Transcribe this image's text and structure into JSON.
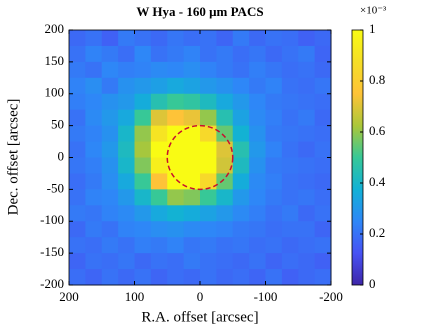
{
  "chart_data": {
    "type": "heatmap",
    "title": "W Hya - 160 μm PACS",
    "xlabel": "R.A. offset [arcsec]",
    "ylabel": "Dec. offset [arcsec]",
    "xlim": [
      200,
      -200
    ],
    "ylim": [
      -200,
      200
    ],
    "xticks": [
      200,
      100,
      0,
      -100,
      -200
    ],
    "yticks": [
      -200,
      -150,
      -100,
      -50,
      0,
      50,
      100,
      150,
      200
    ],
    "colormap": "parula",
    "clim": [
      0,
      1
    ],
    "cticks": [
      0,
      0.2,
      0.4,
      0.6,
      0.8,
      1
    ],
    "cexponent": "×10⁻³",
    "x": [
      187.5,
      162.5,
      137.5,
      112.5,
      87.5,
      62.5,
      37.5,
      12.5,
      -12.5,
      -37.5,
      -62.5,
      -87.5,
      -112.5,
      -137.5,
      -162.5,
      -187.5
    ],
    "y": [
      187.5,
      162.5,
      137.5,
      112.5,
      87.5,
      62.5,
      37.5,
      12.5,
      -12.5,
      -37.5,
      -62.5,
      -87.5,
      -112.5,
      -137.5,
      -162.5,
      -187.5
    ],
    "z": [
      [
        0.18,
        0.2,
        0.16,
        0.22,
        0.2,
        0.18,
        0.21,
        0.19,
        0.2,
        0.17,
        0.22,
        0.18,
        0.2,
        0.19,
        0.16,
        0.18
      ],
      [
        0.2,
        0.24,
        0.22,
        0.19,
        0.25,
        0.2,
        0.22,
        0.24,
        0.2,
        0.22,
        0.19,
        0.21,
        0.18,
        0.2,
        0.22,
        0.17
      ],
      [
        0.22,
        0.2,
        0.25,
        0.23,
        0.24,
        0.26,
        0.25,
        0.27,
        0.24,
        0.22,
        0.2,
        0.23,
        0.21,
        0.19,
        0.2,
        0.18
      ],
      [
        0.24,
        0.27,
        0.22,
        0.28,
        0.3,
        0.32,
        0.35,
        0.33,
        0.3,
        0.28,
        0.25,
        0.22,
        0.24,
        0.2,
        0.19,
        0.21
      ],
      [
        0.23,
        0.25,
        0.28,
        0.3,
        0.36,
        0.45,
        0.5,
        0.48,
        0.42,
        0.35,
        0.3,
        0.25,
        0.22,
        0.21,
        0.2,
        0.19
      ],
      [
        0.2,
        0.26,
        0.3,
        0.35,
        0.5,
        0.7,
        0.75,
        0.72,
        0.6,
        0.45,
        0.33,
        0.26,
        0.23,
        0.2,
        0.22,
        0.18
      ],
      [
        0.22,
        0.24,
        0.28,
        0.4,
        0.6,
        0.9,
        1,
        1,
        0.85,
        0.55,
        0.38,
        0.28,
        0.22,
        0.21,
        0.2,
        0.19
      ],
      [
        0.2,
        0.25,
        0.3,
        0.42,
        0.62,
        1,
        1,
        1,
        1,
        0.7,
        0.45,
        0.3,
        0.24,
        0.2,
        0.18,
        0.2
      ],
      [
        0.21,
        0.23,
        0.28,
        0.4,
        0.58,
        0.95,
        1,
        1,
        1,
        0.68,
        0.42,
        0.28,
        0.22,
        0.21,
        0.2,
        0.19
      ],
      [
        0.19,
        0.22,
        0.27,
        0.35,
        0.5,
        0.75,
        1,
        1,
        0.85,
        0.55,
        0.36,
        0.26,
        0.23,
        0.2,
        0.19,
        0.18
      ],
      [
        0.2,
        0.24,
        0.25,
        0.3,
        0.4,
        0.5,
        0.6,
        0.58,
        0.5,
        0.4,
        0.3,
        0.25,
        0.22,
        0.2,
        0.21,
        0.19
      ],
      [
        0.22,
        0.21,
        0.24,
        0.26,
        0.3,
        0.35,
        0.38,
        0.36,
        0.33,
        0.3,
        0.26,
        0.23,
        0.2,
        0.22,
        0.18,
        0.2
      ],
      [
        0.18,
        0.22,
        0.2,
        0.24,
        0.25,
        0.27,
        0.28,
        0.26,
        0.25,
        0.24,
        0.22,
        0.21,
        0.19,
        0.2,
        0.2,
        0.17
      ],
      [
        0.2,
        0.19,
        0.22,
        0.2,
        0.23,
        0.22,
        0.24,
        0.21,
        0.22,
        0.2,
        0.21,
        0.19,
        0.2,
        0.18,
        0.19,
        0.2
      ],
      [
        0.17,
        0.2,
        0.19,
        0.21,
        0.18,
        0.2,
        0.19,
        0.22,
        0.2,
        0.19,
        0.18,
        0.2,
        0.17,
        0.19,
        0.18,
        0.16
      ],
      [
        0.19,
        0.17,
        0.2,
        0.18,
        0.2,
        0.17,
        0.19,
        0.18,
        0.2,
        0.18,
        0.19,
        0.17,
        0.2,
        0.16,
        0.18,
        0.19
      ]
    ],
    "circle": {
      "x": 0,
      "y": 0,
      "r": 50,
      "color": "#c8102e"
    }
  }
}
